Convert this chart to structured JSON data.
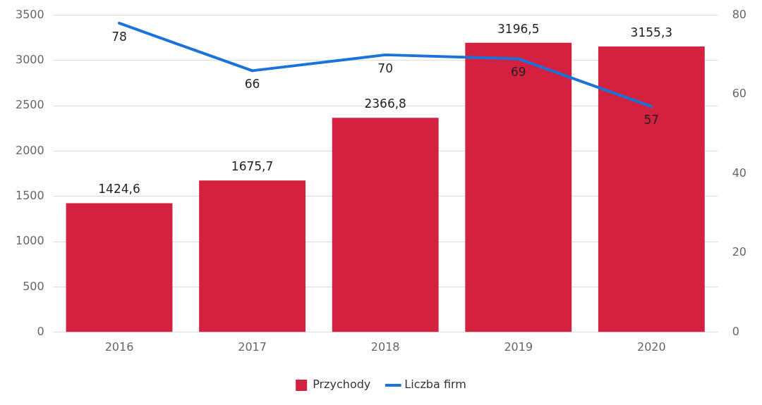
{
  "chart_data": {
    "type": "bar",
    "categories": [
      "2016",
      "2017",
      "2018",
      "2019",
      "2020"
    ],
    "series": [
      {
        "name": "Przychody",
        "color": "#d42140",
        "values": [
          1424.6,
          1675.7,
          2366.8,
          3196.5,
          3155.3
        ],
        "value_labels": [
          "1424,6",
          "1675,7",
          "2366,8",
          "3196,5",
          "3155,3"
        ]
      },
      {
        "name": "Liczba firm",
        "type": "line",
        "axis": "y2",
        "color": "#1a73d9",
        "values": [
          78,
          66,
          70,
          69,
          57
        ],
        "value_labels": [
          "78",
          "66",
          "70",
          "69",
          "57"
        ]
      }
    ],
    "ylim": [
      0,
      3500
    ],
    "yticks": [
      0,
      500,
      1000,
      1500,
      2000,
      2500,
      3000,
      3500
    ],
    "y2lim": [
      0,
      80
    ],
    "y2ticks": [
      0,
      20,
      40,
      60,
      80
    ],
    "grid": "y",
    "legend": "bottom",
    "marker": "none",
    "line_style": "solid"
  }
}
